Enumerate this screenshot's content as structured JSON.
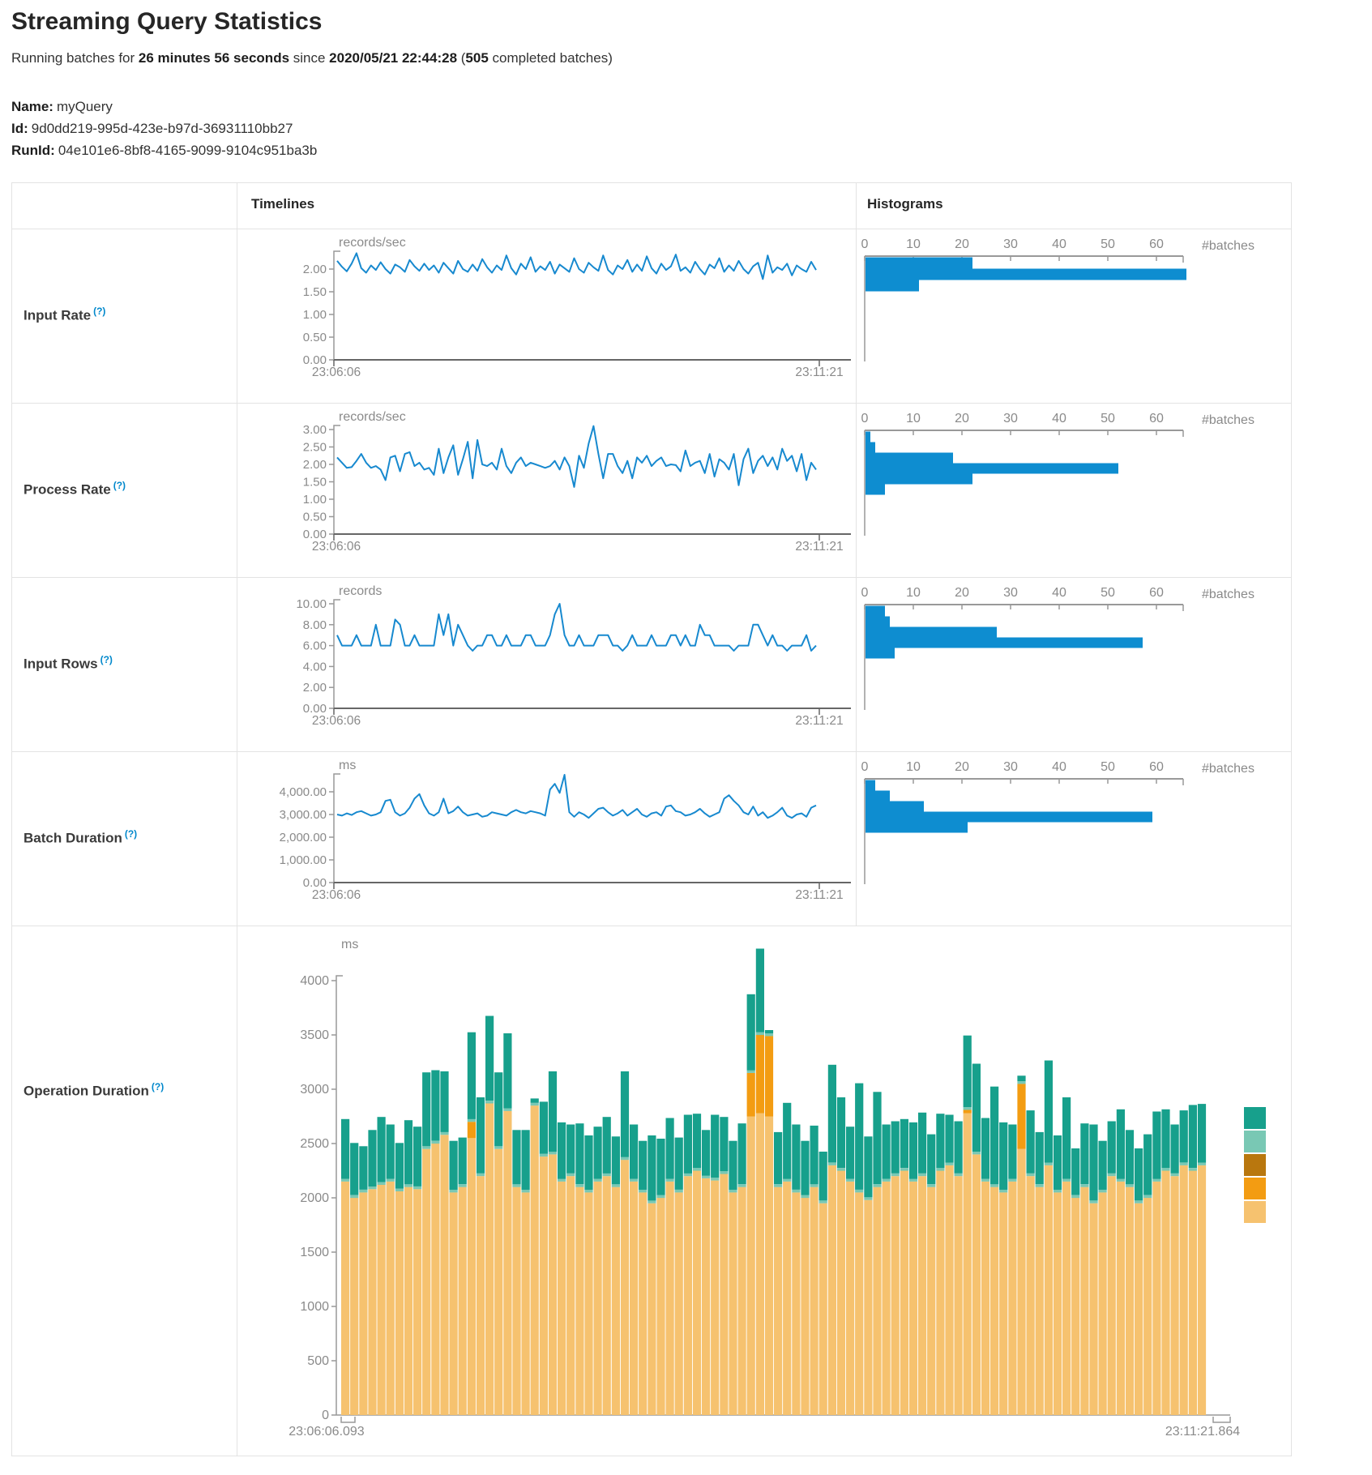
{
  "page": {
    "title": "Streaming Query Statistics",
    "subtitle": {
      "prefix": "Running batches for ",
      "duration": "26 minutes 56 seconds",
      "middle": " since ",
      "start_time": "2020/05/21 22:44:28",
      "open_paren": " (",
      "batch_count": "505",
      "suffix": " completed batches)"
    },
    "name_label": "Name:",
    "name_value": "myQuery",
    "id_label": "Id:",
    "id_value": "9d0dd219-995d-423e-b97d-36931110bb27",
    "runid_label": "RunId:",
    "runid_value": "04e101e6-8bf8-4165-9099-9104c951ba3b"
  },
  "table": {
    "headers": {
      "timelines": "Timelines",
      "histograms": "Histograms"
    },
    "help_marker": "(?)",
    "rows": [
      {
        "label": "Input Rate"
      },
      {
        "label": "Process Rate"
      },
      {
        "label": "Input Rows"
      },
      {
        "label": "Batch Duration"
      },
      {
        "label": "Operation Duration"
      }
    ]
  },
  "colors": {
    "line_blue": "#1789CF",
    "hist_blue": "#0E8DD0",
    "teal": "#17A08C",
    "light_teal": "#79C8B4",
    "dark_gold": "#B9770E",
    "orange": "#F39C12",
    "tan": "#F6C26F",
    "axis_dark": "#666666",
    "axis_light": "#999999",
    "tick_text": "#8A8A8A",
    "help_blue": "#0088CC"
  },
  "chart_data": [
    {
      "id": "input_rate_timeline",
      "type": "line",
      "unit": "records/sec",
      "x_start_label": "23:06:06",
      "x_end_label": "23:11:21",
      "y_tick_values": [
        2,
        1.5,
        1,
        0.5,
        0
      ],
      "y_tick_labels": [
        "2.00",
        "1.50",
        "1.00",
        "0.50",
        "0.00"
      ],
      "ylim": [
        0,
        2.35
      ],
      "values": [
        2.18,
        2.05,
        1.95,
        2.12,
        2.35,
        2.02,
        1.92,
        2.08,
        1.98,
        2.15,
        2.0,
        1.9,
        2.1,
        2.04,
        1.94,
        2.2,
        2.06,
        1.96,
        2.12,
        1.98,
        2.08,
        1.92,
        2.14,
        2.02,
        1.9,
        2.18,
        2.0,
        1.94,
        2.1,
        1.96,
        2.22,
        2.04,
        1.92,
        2.08,
        1.98,
        2.3,
        2.02,
        1.88,
        2.12,
        2.0,
        2.26,
        1.94,
        2.06,
        1.98,
        2.16,
        1.9,
        2.1,
        2.02,
        1.94,
        2.24,
        2.0,
        1.92,
        2.14,
        2.04,
        1.96,
        2.3,
        1.98,
        1.88,
        2.08,
        2.0,
        2.2,
        1.94,
        2.1,
        1.96,
        2.28,
        2.02,
        1.9,
        2.12,
        1.98,
        2.06,
        2.32,
        1.96,
        2.04,
        1.92,
        2.16,
        2.0,
        1.88,
        2.1,
        2.02,
        2.24,
        1.94,
        2.08,
        1.96,
        2.18,
        2.0,
        1.9,
        2.06,
        2.14,
        1.78,
        2.3,
        1.92,
        2.04,
        1.98,
        2.12,
        1.86,
        2.08,
        2.0,
        1.94,
        2.16,
        1.98
      ]
    },
    {
      "id": "input_rate_histogram",
      "type": "bar",
      "orientation": "horizontal",
      "unit": "#batches",
      "x_tick_values": [
        0,
        10,
        20,
        30,
        40,
        50,
        60
      ],
      "x_tick_labels": [
        "0",
        "10",
        "20",
        "30",
        "40",
        "50",
        "60"
      ],
      "xlim": [
        0,
        66
      ],
      "values": [
        22,
        66,
        11
      ]
    },
    {
      "id": "process_rate_timeline",
      "type": "line",
      "unit": "records/sec",
      "x_start_label": "23:06:06",
      "x_end_label": "23:11:21",
      "y_tick_values": [
        3,
        2.5,
        2,
        1.5,
        1,
        0.5,
        0
      ],
      "y_tick_labels": [
        "3.00",
        "2.50",
        "2.00",
        "1.50",
        "1.00",
        "0.50",
        "0.00"
      ],
      "ylim": [
        0,
        3.1
      ],
      "values": [
        2.2,
        2.05,
        1.9,
        1.92,
        2.1,
        2.3,
        2.05,
        1.9,
        1.95,
        1.85,
        1.55,
        2.2,
        2.25,
        1.8,
        2.3,
        2.35,
        1.95,
        2.05,
        1.85,
        1.9,
        1.7,
        2.45,
        1.75,
        2.2,
        2.55,
        1.7,
        2.15,
        2.65,
        1.6,
        2.7,
        2.0,
        1.95,
        2.05,
        1.85,
        2.45,
        1.95,
        1.75,
        2.05,
        2.2,
        1.95,
        2.05,
        2.0,
        1.95,
        1.9,
        1.95,
        2.1,
        1.85,
        2.2,
        1.95,
        1.35,
        2.25,
        1.9,
        2.6,
        3.1,
        2.3,
        1.6,
        2.3,
        2.3,
        1.95,
        1.75,
        2.1,
        1.6,
        2.2,
        2.05,
        2.25,
        1.95,
        2.1,
        2.2,
        1.95,
        2.0,
        1.98,
        1.8,
        2.4,
        1.95,
        2.05,
        2.1,
        1.75,
        2.3,
        1.65,
        2.15,
        2.05,
        1.85,
        2.3,
        1.4,
        2.15,
        2.45,
        1.75,
        2.1,
        2.25,
        1.95,
        2.2,
        1.85,
        2.45,
        2.1,
        2.25,
        1.8,
        2.3,
        1.55,
        2.05,
        1.85
      ]
    },
    {
      "id": "process_rate_histogram",
      "type": "bar",
      "orientation": "horizontal",
      "unit": "#batches",
      "x_tick_values": [
        0,
        10,
        20,
        30,
        40,
        50,
        60
      ],
      "x_tick_labels": [
        "0",
        "10",
        "20",
        "30",
        "40",
        "50",
        "60"
      ],
      "xlim": [
        0,
        66
      ],
      "values": [
        1,
        2,
        18,
        52,
        22,
        4
      ]
    },
    {
      "id": "input_rows_timeline",
      "type": "line",
      "unit": "records",
      "x_start_label": "23:06:06",
      "x_end_label": "23:11:21",
      "y_tick_values": [
        10,
        8,
        6,
        4,
        2,
        0
      ],
      "y_tick_labels": [
        "10.00",
        "8.00",
        "6.00",
        "4.00",
        "2.00",
        "0.00"
      ],
      "ylim": [
        0,
        10
      ],
      "values": [
        7,
        6,
        6,
        6,
        7,
        6,
        6,
        6,
        8,
        6,
        6,
        6,
        8.5,
        8,
        6,
        6,
        7,
        6,
        6,
        6,
        6,
        9,
        7,
        9,
        6,
        8,
        7,
        6,
        5.5,
        6,
        6,
        7,
        7,
        6,
        6,
        7,
        6,
        6,
        6,
        7,
        7,
        6,
        6,
        6,
        7,
        9,
        10,
        7,
        6,
        6,
        7,
        6,
        6,
        6,
        7,
        7,
        7,
        6,
        6,
        5.5,
        6,
        7,
        6,
        6,
        6,
        7,
        6,
        6,
        6,
        7,
        7,
        6,
        7,
        6,
        6,
        8,
        7,
        7,
        6,
        6,
        6,
        6,
        5.5,
        6,
        6,
        6,
        8,
        8,
        7,
        6,
        7,
        6,
        6,
        5.5,
        6,
        6,
        6,
        7,
        5.5,
        6
      ]
    },
    {
      "id": "input_rows_histogram",
      "type": "bar",
      "orientation": "horizontal",
      "unit": "#batches",
      "x_tick_values": [
        0,
        10,
        20,
        30,
        40,
        50,
        60
      ],
      "x_tick_labels": [
        "0",
        "10",
        "20",
        "30",
        "40",
        "50",
        "60"
      ],
      "xlim": [
        0,
        66
      ],
      "values": [
        4,
        5,
        27,
        57,
        6
      ]
    },
    {
      "id": "batch_duration_timeline",
      "type": "line",
      "unit": "ms",
      "x_start_label": "23:06:06",
      "x_end_label": "23:11:21",
      "y_tick_values": [
        4000,
        3000,
        2000,
        1000,
        0
      ],
      "y_tick_labels": [
        "4,000.00",
        "3,000.00",
        "2,000.00",
        "1,000.00",
        "0.00"
      ],
      "ylim": [
        0,
        4750
      ],
      "values": [
        3000,
        2950,
        3050,
        2980,
        3100,
        3150,
        3050,
        2950,
        3000,
        3100,
        3600,
        3650,
        3100,
        2950,
        3050,
        3300,
        3700,
        3900,
        3400,
        3050,
        2950,
        3100,
        3700,
        3050,
        3150,
        3350,
        3100,
        2950,
        3000,
        3050,
        2900,
        2950,
        3100,
        3050,
        3000,
        2950,
        3100,
        3200,
        3100,
        3050,
        3150,
        3100,
        3050,
        2950,
        4100,
        4350,
        3950,
        4750,
        3100,
        2900,
        3100,
        3000,
        2850,
        3050,
        3250,
        3300,
        3100,
        2950,
        3050,
        3200,
        2950,
        3100,
        3250,
        3000,
        2900,
        3050,
        3100,
        2950,
        3350,
        3400,
        3150,
        3100,
        2950,
        3000,
        3100,
        3250,
        3050,
        2900,
        3000,
        3100,
        3700,
        3850,
        3600,
        3400,
        3100,
        3000,
        3350,
        2950,
        3100,
        2850,
        2950,
        3100,
        3300,
        2950,
        2850,
        3000,
        3050,
        2900,
        3300,
        3400
      ]
    },
    {
      "id": "batch_duration_histogram",
      "type": "bar",
      "orientation": "horizontal",
      "unit": "#batches",
      "x_tick_values": [
        0,
        10,
        20,
        30,
        40,
        50,
        60
      ],
      "x_tick_labels": [
        "0",
        "10",
        "20",
        "30",
        "40",
        "50",
        "60"
      ],
      "xlim": [
        0,
        66
      ],
      "values": [
        2,
        5,
        12,
        59,
        21
      ]
    },
    {
      "id": "operation_duration",
      "type": "stacked_bar",
      "unit": "ms",
      "x_start_label": "23:06:06.093",
      "x_end_label": "23:11:21.864",
      "y_tick_values": [
        4000,
        3500,
        3000,
        2500,
        2000,
        1500,
        1000,
        500,
        0
      ],
      "y_tick_labels": [
        "4000",
        "3500",
        "3000",
        "2500",
        "2000",
        "1500",
        "1000",
        "500",
        "0"
      ],
      "ylim": [
        0,
        4300
      ],
      "stack_order": [
        "tan",
        "orange",
        "light_teal",
        "teal"
      ],
      "legend_color_keys": [
        "teal",
        "light_teal",
        "dark_gold",
        "orange",
        "tan"
      ],
      "series": [
        {
          "color_key": "tan",
          "values": [
            2150,
            2000,
            2050,
            2080,
            2120,
            2150,
            2060,
            2100,
            2080,
            2450,
            2500,
            2580,
            2050,
            2100,
            2550,
            2200,
            2870,
            2450,
            2800,
            2100,
            2050,
            2850,
            2380,
            2400,
            2150,
            2200,
            2100,
            2050,
            2150,
            2200,
            2100,
            2350,
            2150,
            2050,
            1950,
            2000,
            2150,
            2050,
            2200,
            2250,
            2180,
            2160,
            2220,
            2050,
            2100,
            2750,
            2780,
            2750,
            2100,
            2150,
            2050,
            2000,
            2100,
            1950,
            2300,
            2250,
            2150,
            2050,
            1980,
            2100,
            2150,
            2200,
            2250,
            2150,
            2200,
            2100,
            2250,
            2300,
            2200,
            2780,
            2400,
            2150,
            2100,
            2050,
            2150,
            2450,
            2200,
            2100,
            2300,
            2050,
            2150,
            2000,
            2100,
            1950,
            2050,
            2200,
            2150,
            2100,
            1950,
            2000,
            2150,
            2250,
            2200,
            2300,
            2250,
            2300
          ]
        },
        {
          "color_key": "orange",
          "values": [
            0,
            0,
            0,
            0,
            0,
            0,
            0,
            0,
            0,
            0,
            0,
            0,
            0,
            0,
            150,
            0,
            0,
            0,
            0,
            0,
            0,
            0,
            0,
            0,
            0,
            0,
            0,
            0,
            0,
            0,
            0,
            0,
            0,
            0,
            0,
            0,
            0,
            0,
            0,
            0,
            0,
            0,
            0,
            0,
            0,
            400,
            720,
            740,
            0,
            0,
            0,
            0,
            0,
            0,
            0,
            0,
            0,
            0,
            0,
            0,
            0,
            0,
            0,
            0,
            0,
            0,
            0,
            0,
            0,
            30,
            0,
            0,
            0,
            0,
            0,
            600,
            0,
            0,
            0,
            0,
            0,
            0,
            0,
            0,
            0,
            0,
            0,
            0,
            0,
            0,
            0,
            0,
            0,
            0,
            0,
            0
          ]
        },
        {
          "color_key": "light_teal",
          "values": [
            25,
            25,
            25,
            25,
            25,
            25,
            25,
            25,
            25,
            25,
            25,
            25,
            25,
            25,
            25,
            25,
            25,
            25,
            25,
            25,
            25,
            25,
            25,
            25,
            25,
            25,
            25,
            25,
            25,
            25,
            25,
            25,
            25,
            25,
            25,
            25,
            25,
            25,
            25,
            25,
            25,
            25,
            25,
            25,
            25,
            25,
            25,
            25,
            25,
            25,
            25,
            25,
            25,
            25,
            25,
            25,
            25,
            25,
            25,
            25,
            25,
            25,
            25,
            25,
            25,
            25,
            25,
            25,
            25,
            25,
            25,
            25,
            25,
            25,
            25,
            25,
            25,
            25,
            25,
            25,
            25,
            25,
            25,
            25,
            25,
            25,
            25,
            25,
            25,
            25,
            25,
            25,
            25,
            25,
            25,
            25
          ]
        },
        {
          "color_key": "teal",
          "values": [
            550,
            480,
            400,
            520,
            600,
            500,
            420,
            590,
            550,
            680,
            650,
            560,
            450,
            430,
            800,
            700,
            780,
            680,
            690,
            500,
            550,
            40,
            480,
            740,
            520,
            450,
            560,
            500,
            480,
            520,
            440,
            790,
            500,
            450,
            600,
            520,
            560,
            480,
            540,
            500,
            420,
            580,
            500,
            450,
            560,
            700,
            770,
            30,
            480,
            700,
            600,
            500,
            540,
            450,
            900,
            650,
            480,
            980,
            560,
            850,
            500,
            480,
            450,
            520,
            560,
            460,
            500,
            440,
            480,
            660,
            810,
            560,
            900,
            620,
            500,
            50,
            580,
            480,
            940,
            500,
            750,
            430,
            560,
            700,
            450,
            480,
            640,
            500,
            480,
            560,
            620,
            540,
            450,
            480,
            580,
            540
          ]
        }
      ]
    }
  ]
}
